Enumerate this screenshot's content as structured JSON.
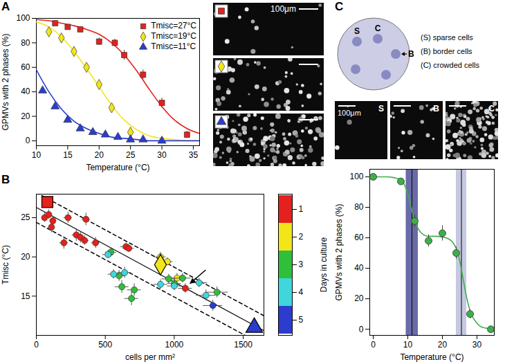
{
  "chart_data": [
    {
      "panel": "A",
      "type": "scatter",
      "xlabel": "Temperature (°C)",
      "ylabel": "GPMVs with 2 phases (%)",
      "xlim": [
        10,
        36
      ],
      "xticks": [
        10,
        15,
        20,
        25,
        30,
        35
      ],
      "ylim": [
        -4,
        100
      ],
      "yticks": [
        0,
        20,
        40,
        60,
        80,
        100
      ],
      "legend": "top-right",
      "series": [
        {
          "name": "Tmisc=27°C",
          "color": "#e4211c",
          "marker": "square",
          "x": [
            13,
            15,
            17,
            20,
            22.5,
            24,
            27,
            30,
            34
          ],
          "values": [
            96,
            93,
            91,
            81,
            80,
            70,
            54,
            31,
            5
          ],
          "errors": [
            2,
            2,
            2,
            3,
            3,
            4,
            4,
            4,
            3
          ],
          "fit_x": [
            10,
            12,
            14,
            16,
            18,
            20,
            22,
            24,
            26,
            28,
            30,
            32,
            34,
            36
          ],
          "fit_values": [
            99,
            98,
            96,
            94,
            91,
            87,
            80,
            70,
            57,
            42,
            28,
            17,
            10,
            6
          ]
        },
        {
          "name": "Tmisc=19°C",
          "color": "#f2e51a",
          "marker": "diamond",
          "x": [
            12,
            14,
            16,
            18,
            20,
            22,
            25
          ],
          "values": [
            89,
            84,
            73,
            60,
            46,
            27,
            7
          ],
          "errors": [
            2,
            2,
            2,
            2,
            2,
            2,
            1
          ],
          "fit_x": [
            10,
            12,
            14,
            16,
            18,
            20,
            22,
            24,
            26,
            28,
            30,
            32,
            34,
            36
          ],
          "fit_values": [
            97,
            93,
            85,
            73,
            59,
            44,
            29,
            17,
            9,
            4,
            2,
            1,
            0,
            0
          ]
        },
        {
          "name": "Tmisc=11°C",
          "color": "#2b3ccf",
          "marker": "triangle",
          "x": [
            11,
            13,
            15,
            17,
            19,
            21,
            23,
            25,
            27,
            30
          ],
          "values": [
            41,
            28,
            17,
            10,
            7,
            5,
            3,
            1,
            1,
            0
          ],
          "errors": [
            2,
            2,
            2,
            1,
            1,
            1,
            1,
            1,
            1,
            1
          ],
          "fit_x": [
            10,
            12,
            14,
            16,
            18,
            20,
            22,
            24,
            26,
            28,
            30,
            32,
            34,
            36
          ],
          "fit_values": [
            58,
            40,
            26,
            16,
            10,
            6,
            3,
            2,
            1,
            0,
            0,
            0,
            0,
            0
          ]
        }
      ]
    },
    {
      "panel": "B",
      "type": "scatter",
      "xlabel": "cells per mm²",
      "ylabel": "Tmisc (°C)",
      "xlim": [
        0,
        1650
      ],
      "xticks": [
        0,
        500,
        1000,
        1500
      ],
      "ylim": [
        10,
        28
      ],
      "yticks": [
        15,
        20,
        25
      ],
      "series": [
        {
          "day": 1,
          "color": "#e4211c",
          "marker": "circle",
          "x": [
            60,
            90,
            110,
            120,
            200,
            230,
            290,
            320,
            350,
            360,
            430,
            650,
            670,
            1080
          ],
          "values": [
            25.0,
            25.4,
            23.8,
            24.6,
            21.8,
            25.0,
            22.8,
            22.5,
            22.1,
            24.8,
            21.8,
            21.3,
            21.1,
            16.0
          ],
          "xerr": [
            15,
            20,
            20,
            20,
            30,
            30,
            30,
            30,
            30,
            30,
            30,
            40,
            40,
            50
          ],
          "yerr": [
            0.6,
            0.6,
            0.7,
            0.6,
            0.8,
            0.7,
            0.8,
            0.7,
            0.6,
            0.8,
            0.7,
            0.5,
            0.5,
            0.6
          ]
        },
        {
          "day": 2,
          "color": "#f2e51a",
          "marker": "circle",
          "x": [
            900,
            950,
            1020
          ],
          "values": [
            20.0,
            19.4,
            17.3
          ],
          "xerr": [
            40,
            40,
            50
          ],
          "yerr": [
            0.6,
            0.5,
            0.6
          ]
        },
        {
          "day": 3,
          "color": "#2fbf3a",
          "marker": "circle",
          "x": [
            540,
            600,
            620,
            690,
            710,
            960,
            1000,
            1060,
            1310
          ],
          "values": [
            20.6,
            17.6,
            16.2,
            14.7,
            15.8,
            17.2,
            16.6,
            17.3,
            15.5
          ],
          "xerr": [
            40,
            40,
            50,
            50,
            50,
            50,
            50,
            60,
            80
          ],
          "yerr": [
            0.6,
            0.7,
            0.8,
            0.9,
            0.8,
            0.6,
            0.6,
            0.6,
            0.7
          ]
        },
        {
          "day": 4,
          "color": "#3fd6dc",
          "marker": "circle",
          "x": [
            520,
            560,
            640,
            900,
            1000,
            1180,
            1230
          ],
          "values": [
            20.3,
            17.8,
            18.0,
            16.5,
            16.3,
            16.7,
            15.1
          ],
          "xerr": [
            40,
            40,
            50,
            50,
            50,
            60,
            70
          ],
          "yerr": [
            0.5,
            0.6,
            0.7,
            0.6,
            0.6,
            0.6,
            0.7
          ]
        },
        {
          "day": 5,
          "color": "#2b3ccf",
          "marker": "circle",
          "x": [
            1280
          ],
          "values": [
            13.8
          ],
          "xerr": [
            70
          ],
          "yerr": [
            0.7
          ]
        }
      ],
      "highlights": [
        {
          "x": 80,
          "y": 27,
          "marker": "square",
          "color": "#e4211c"
        },
        {
          "x": 900,
          "y": 19,
          "marker": "diamond",
          "color": "#f2e51a"
        },
        {
          "x": 1580,
          "y": 11,
          "marker": "triangle",
          "color": "#2b3ccf"
        }
      ],
      "fit_x": [
        0,
        1650
      ],
      "fit_values": [
        26.3,
        10.6
      ],
      "fit_upper": [
        28.2,
        12.5
      ],
      "fit_lower": [
        24.4,
        8.7
      ],
      "arrow": {
        "x": 1080,
        "y": 16.0
      },
      "colorbar": {
        "label": "Days in culture",
        "ticks": [
          1,
          2,
          3,
          4,
          5
        ],
        "colors": [
          "#e4211c",
          "#f2e51a",
          "#2fbf3a",
          "#3fd6dc",
          "#2b3ccf"
        ]
      }
    },
    {
      "panel": "C",
      "type": "scatter",
      "xlabel": "Temperature (°C)",
      "ylabel": "GPMVs with 2 phases (%)",
      "xlim": [
        -1,
        35
      ],
      "xticks": [
        0,
        10,
        20,
        30
      ],
      "ylim": [
        -4,
        105
      ],
      "yticks": [
        0,
        20,
        40,
        60,
        80,
        100
      ],
      "series": [
        {
          "color": "#3fae49",
          "marker": "circle",
          "x": [
            0,
            8,
            12,
            16,
            20,
            24,
            28,
            34
          ],
          "values": [
            100,
            97,
            71,
            58,
            63,
            50,
            10,
            0
          ],
          "errors": [
            1,
            2,
            4,
            4,
            5,
            4,
            3,
            1
          ],
          "fit_x": [
            0,
            2,
            4,
            6,
            8,
            9,
            10,
            11,
            12,
            13,
            14,
            16,
            18,
            20,
            22,
            23,
            24,
            25,
            26,
            27,
            28,
            30,
            32,
            34
          ],
          "fit_values": [
            100,
            100,
            100,
            99.5,
            98,
            95,
            89,
            80,
            71,
            66,
            63,
            61,
            61,
            60.5,
            59,
            57,
            53,
            45,
            33,
            21,
            12,
            4,
            1,
            0.5
          ]
        }
      ],
      "bands": [
        {
          "x1": 9.5,
          "x2": 13,
          "center": 11.2,
          "color": "#6a6aa8"
        },
        {
          "x1": 24,
          "x2": 27,
          "center": 25.5,
          "color": "#c5c8e0"
        }
      ]
    }
  ],
  "images": {
    "A": [
      {
        "marker": "square",
        "color": "#e4211c",
        "scale_bar": "100μm"
      },
      {
        "marker": "diamond",
        "color": "#f2e51a"
      },
      {
        "marker": "triangle",
        "color": "#2b3ccf"
      }
    ],
    "C": [
      {
        "label": "S",
        "scale_bar": "100μm"
      },
      {
        "label": "B"
      },
      {
        "label": "C"
      }
    ]
  },
  "diagram": {
    "spots": [
      "S",
      "C",
      "B"
    ],
    "key": [
      "(S) sparse cells",
      "(B) border cells",
      "(C) crowded cells"
    ]
  }
}
